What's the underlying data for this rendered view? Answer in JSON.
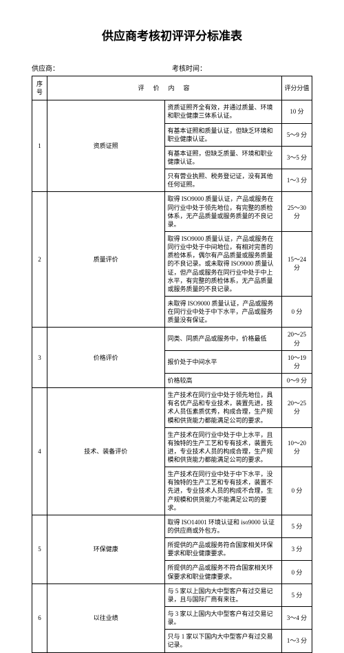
{
  "title": "供应商考核初评评分标准表",
  "supplier_label": "供应商：",
  "date_label": "考核时间：",
  "headers": {
    "no": "序号",
    "content": "评　价　内　容",
    "score": "评分分值"
  },
  "rows": [
    {
      "no": "1",
      "cat": "资质证照",
      "items": [
        {
          "c": "资质证照齐全有效，并通过质量、环境和职业健康三体系认证。",
          "s": "10 分"
        },
        {
          "c": "有基本证照和质量认证，但缺乏环境和职业健康认证。",
          "s": "5～9 分"
        },
        {
          "c": "有基本证照，但缺乏质量、环境和职业健康认证。",
          "s": "3～5 分"
        },
        {
          "c": "只有营业执照、税务登记证，没有其他任何证照。",
          "s": "1～3 分"
        }
      ]
    },
    {
      "no": "2",
      "cat": "质量评价",
      "items": [
        {
          "c": "取得 ISO9000 质量认证，产品或服务在同行业中处于领先地位，有完整的质检体系，无产品质量或服务质量的不良记录。",
          "s": "25～30 分"
        },
        {
          "c": "取得 ISO9000 质量认证，产品或服务在同行业中处于中间地位，有相对完善的质检体系，偶尔有产品质量或服务质量的不良记录。或未取得 ISO9000 质量认证，但产品或服务在同行业中处于中上水平，有完整的质检体系，无产品质量或服务质量的不良记录。",
          "s": "15～24 分"
        },
        {
          "c": "未取得 ISO9000 质量认证，产品或服务在同行业中处于中下水平，产品或服务质量没有保证。",
          "s": "0 分"
        }
      ]
    },
    {
      "no": "3",
      "cat": "价格评价",
      "items": [
        {
          "c": "同类、同质产品或服务中，价格最低",
          "s": "20～25 分"
        },
        {
          "c": "报价处于中间水平",
          "s": "10～19 分"
        },
        {
          "c": "价格较高",
          "s": "0～9 分"
        }
      ]
    },
    {
      "no": "4",
      "cat": "技术、装备评价",
      "items": [
        {
          "c": "生产技术在同行业中处于领先地位，具有名优产品和专业技术，装置先进，技术人员伍素质优秀，构成合理，生产规模和供货能力都能满足公司的要求。",
          "s": "20～25 分"
        },
        {
          "c": "生产技术在同行业中处于中上水平，且有独特的生产工艺和专有技术，装置先进，专业技术人员的构成合理，生产规模和供货能力都能满足公司的要求。",
          "s": "10～20 分"
        },
        {
          "c": "生产技术在同行业中处于中下水平，没有独特的生产工艺和专有技术，装置不先进，专业技术人员的构成不合理，生产规模和供货能力不能满足公司的要求。",
          "s": "0 分"
        }
      ]
    },
    {
      "no": "5",
      "cat": "环保健康",
      "items": [
        {
          "c": "取得 ISO14001 环境认证和 iso9000 认证的供应商或外包方。",
          "s": "5 分"
        },
        {
          "c": "所提供的产品或服务符合国家相关环保要求和职业健康要求。",
          "s": "3 分"
        },
        {
          "c": "所提供的产品或服务不符合国家相关环保要求和职业健康要求。",
          "s": "0 分"
        }
      ]
    },
    {
      "no": "6",
      "cat": "以往业绩",
      "items": [
        {
          "c": "与 5 家以上国内大中型客户有过交易记录，且与国际厂商有来往。",
          "s": "5 分"
        },
        {
          "c": "与 3 家以上国内大中型客户有过交易记录。",
          "s": "3～4 分"
        },
        {
          "c": "只与 1 家以下国内大中型客户有过交易记录。",
          "s": "1～3 分"
        }
      ]
    }
  ]
}
